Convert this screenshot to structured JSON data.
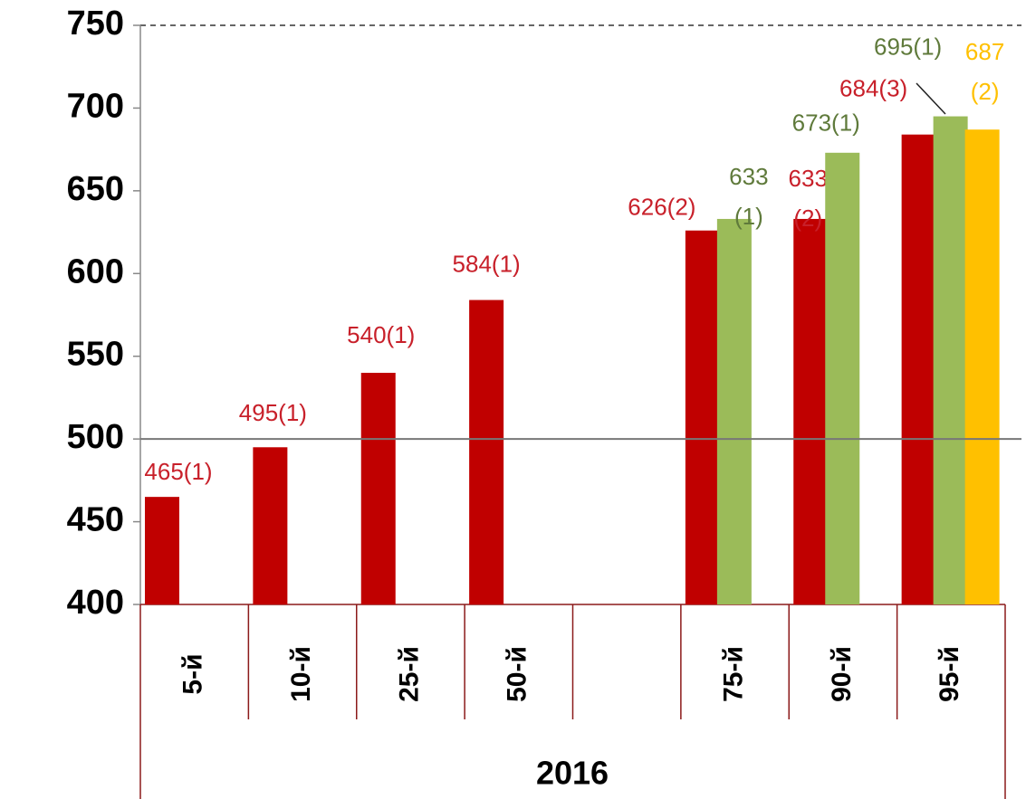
{
  "chart_data": {
    "type": "bar",
    "categories": [
      "5-й",
      "10-й",
      "25-й",
      "50-й",
      null,
      "75-й",
      "90-й",
      "95-й"
    ],
    "group_label": "2016",
    "series": [
      {
        "color": "#c00000",
        "label_color": "#c8202a",
        "values": [
          465,
          495,
          540,
          584,
          null,
          626,
          633,
          684
        ],
        "value_labels": [
          "465(1)",
          "495(1)",
          "540(1)",
          "584(1)",
          null,
          "626(2)",
          "633(2)",
          "684(3)"
        ]
      },
      {
        "color": "#9bbb59",
        "label_color": "#5f7a3b",
        "values": [
          null,
          null,
          null,
          null,
          null,
          633,
          673,
          695
        ],
        "value_labels": [
          null,
          null,
          null,
          null,
          null,
          "633(1)",
          "673(1)",
          "695(1)"
        ]
      },
      {
        "color": "#ffc000",
        "label_color": "#ffc000",
        "values": [
          null,
          null,
          null,
          null,
          null,
          null,
          null,
          687
        ],
        "value_labels": [
          null,
          null,
          null,
          null,
          null,
          null,
          null,
          "687(2)"
        ]
      }
    ],
    "ylim": [
      400,
      750
    ],
    "yticks": [
      400,
      450,
      500,
      550,
      600,
      650,
      700,
      750
    ],
    "reference_line": 500
  }
}
